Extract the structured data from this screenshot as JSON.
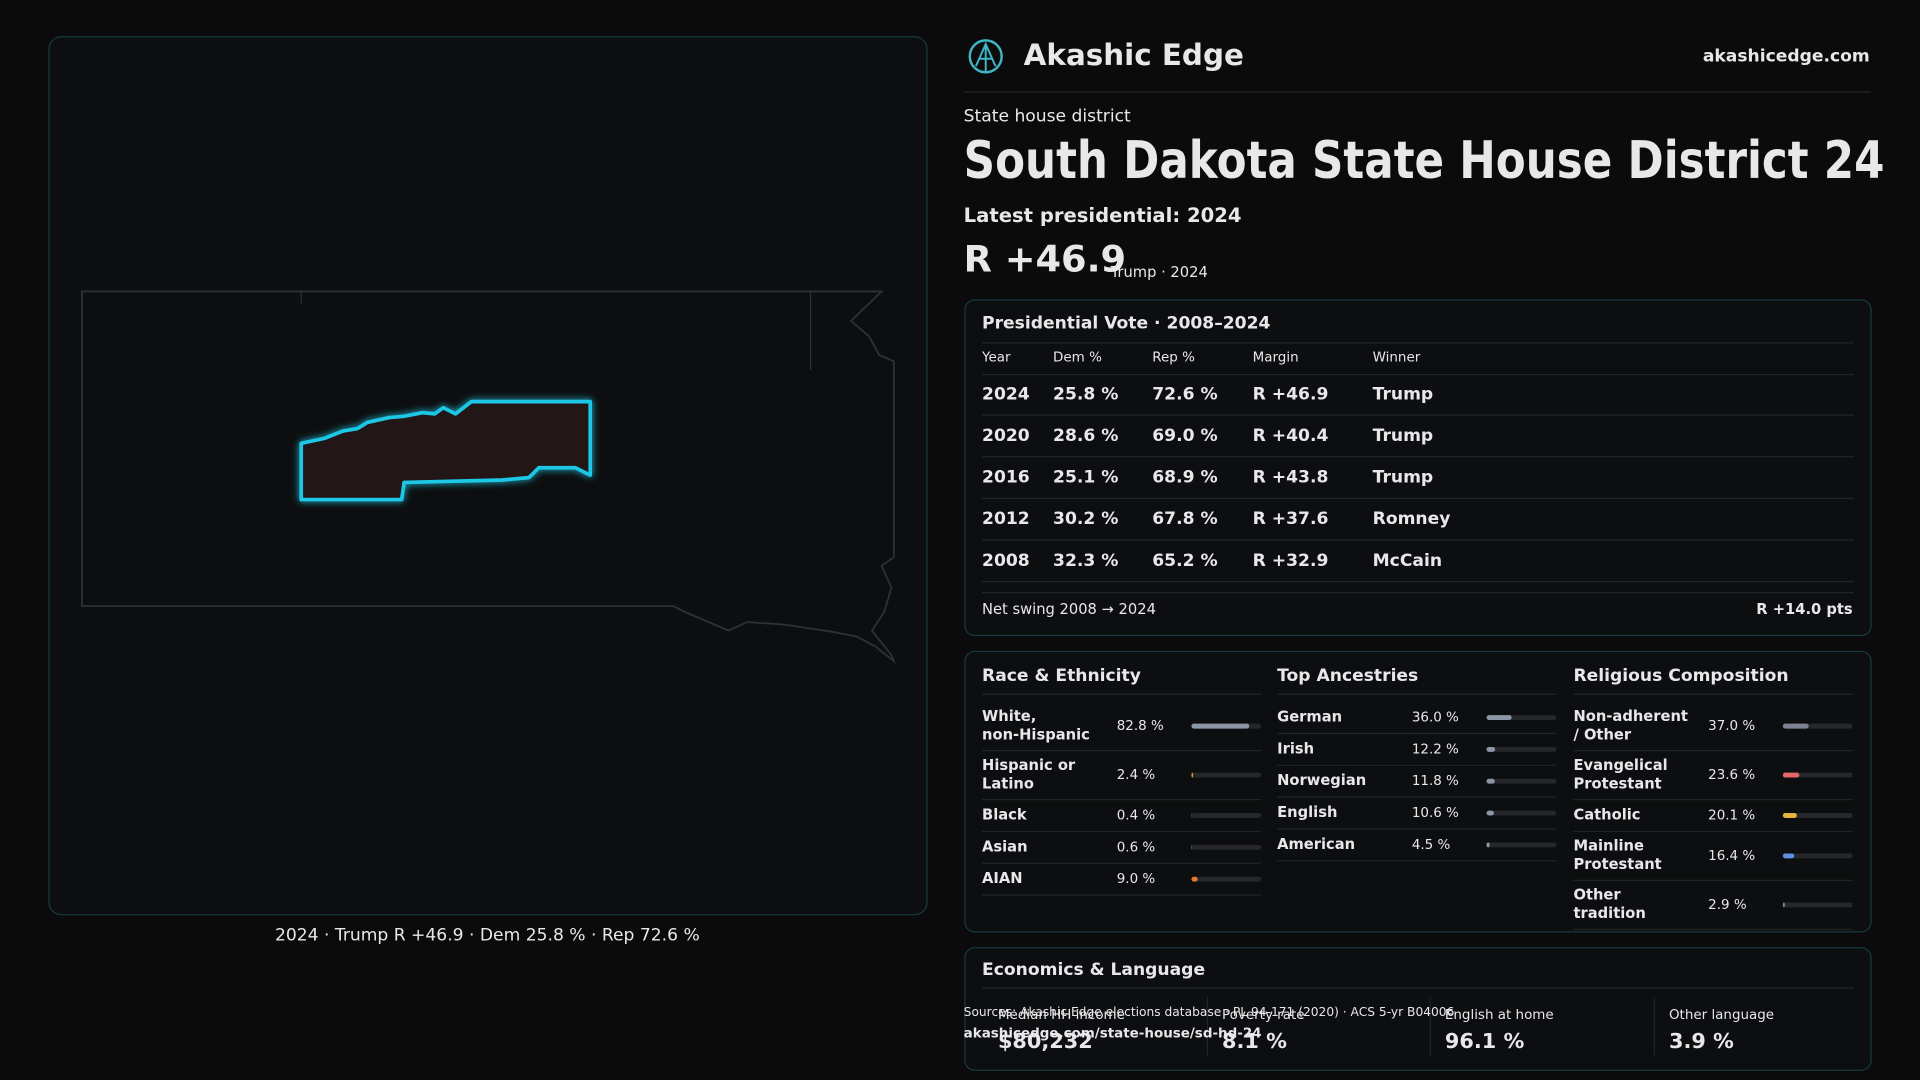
{
  "header": {
    "brand": "Akashic Edge",
    "site": "akashicedge.com"
  },
  "map": {
    "caption": "2024 · Trump R +46.9 · Dem 25.8 % · Rep 72.6 %"
  },
  "district": {
    "kicker": "State house district",
    "title": "South Dakota State House District 24",
    "latest": "Latest presidential: 2024",
    "margin": "R +46.9",
    "margin_note": "Trump · 2024"
  },
  "vote_table": {
    "title": "Presidential Vote · 2008–2024",
    "columns": [
      "Year",
      "Dem %",
      "Rep %",
      "Margin",
      "Winner"
    ],
    "rows": [
      [
        "2024",
        "25.8 %",
        "72.6 %",
        "R +46.9",
        "Trump"
      ],
      [
        "2020",
        "28.6 %",
        "69.0 %",
        "R +40.4",
        "Trump"
      ],
      [
        "2016",
        "25.1 %",
        "68.9 %",
        "R +43.8",
        "Trump"
      ],
      [
        "2012",
        "30.2 %",
        "67.8 %",
        "R +37.6",
        "Romney"
      ],
      [
        "2008",
        "32.3 %",
        "65.2 %",
        "R +32.9",
        "McCain"
      ]
    ],
    "net_swing_label": "Net swing 2008 → 2024",
    "net_swing": "R +14.0 pts"
  },
  "demographics": [
    {
      "title": "Race & Ethnicity",
      "categories": [
        "White, non-Hispanic",
        "Hispanic or Latino",
        "Black",
        "Asian",
        "AIAN"
      ],
      "values": [
        82.8,
        2.4,
        0.4,
        0.6,
        9.0
      ],
      "value_labels": [
        "82.8 %",
        "2.4 %",
        "0.4 %",
        "0.6 %",
        "9.0 %"
      ],
      "colors": [
        "#8b96a6",
        "#d99a3a",
        "#5b7fd6",
        "#3fb6a8",
        "#e0782e"
      ],
      "xlim": [
        0,
        100
      ]
    },
    {
      "title": "Top Ancestries",
      "categories": [
        "German",
        "Irish",
        "Norwegian",
        "English",
        "American"
      ],
      "values": [
        36.0,
        12.2,
        11.8,
        10.6,
        4.5
      ],
      "value_labels": [
        "36.0 %",
        "12.2 %",
        "11.8 %",
        "10.6 %",
        "4.5 %"
      ],
      "colors": [
        "#8b96a6",
        "#8b96a6",
        "#8b96a6",
        "#8b96a6",
        "#8b96a6"
      ],
      "xlim": [
        0,
        100
      ]
    },
    {
      "title": "Religious Composition",
      "categories": [
        "Non-adherent / Other",
        "Evangelical Protestant",
        "Catholic",
        "Mainline Protestant",
        "Other tradition"
      ],
      "values": [
        37.0,
        23.6,
        20.1,
        16.4,
        2.9
      ],
      "value_labels": [
        "37.0 %",
        "23.6 %",
        "20.1 %",
        "16.4 %",
        "2.9 %"
      ],
      "colors": [
        "#7d8390",
        "#e8676b",
        "#e6b43a",
        "#5b8fe0",
        "#7d8390"
      ],
      "xlim": [
        0,
        100
      ]
    }
  ],
  "economics": {
    "title": "Economics & Language",
    "stats": [
      {
        "label": "Median HH income",
        "value": "$80,232"
      },
      {
        "label": "Poverty rate",
        "value": "8.1 %"
      },
      {
        "label": "English at home",
        "value": "96.1 %"
      },
      {
        "label": "Other language",
        "value": "3.9 %"
      }
    ]
  },
  "footer": {
    "sources": "Sources: Akashic Edge elections database · PL 94-171 (2020) · ACS 5-yr B04006",
    "url": "akashicedge.com/state-house/sd-hd-24"
  }
}
